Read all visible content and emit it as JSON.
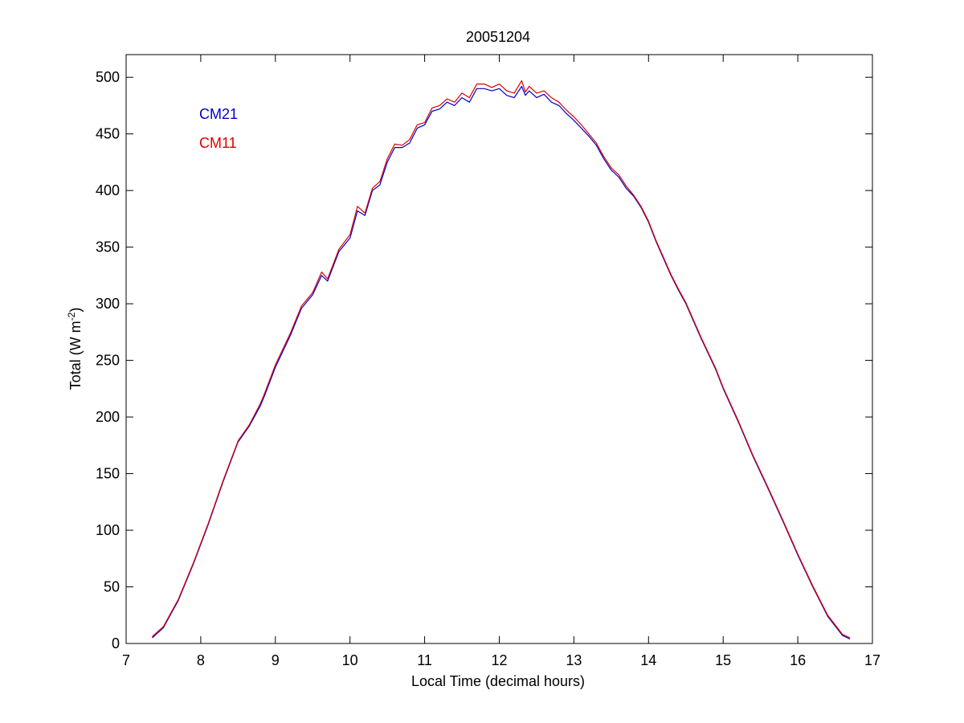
{
  "chart_data": {
    "type": "line",
    "title": "20051204",
    "xlabel": "Local Time (decimal hours)",
    "ylabel": "Total (W m",
    "ylabel_sup": "-2",
    "ylabel_close": ")",
    "xlim": [
      7,
      17
    ],
    "ylim": [
      0,
      520
    ],
    "xticks": [
      7,
      8,
      9,
      10,
      11,
      12,
      13,
      14,
      15,
      16,
      17
    ],
    "yticks": [
      0,
      50,
      100,
      150,
      200,
      250,
      300,
      350,
      400,
      450,
      500
    ],
    "grid": false,
    "legend": {
      "placement": "top-left",
      "style": "text-labels"
    },
    "series": [
      {
        "name": "CM21",
        "color": "#0000cc",
        "x": [
          7.35,
          7.5,
          7.7,
          7.9,
          8.1,
          8.3,
          8.5,
          8.65,
          8.8,
          8.85,
          9.0,
          9.2,
          9.35,
          9.5,
          9.62,
          9.7,
          9.85,
          10.0,
          10.1,
          10.2,
          10.3,
          10.4,
          10.5,
          10.6,
          10.7,
          10.8,
          10.9,
          11.0,
          11.1,
          11.2,
          11.3,
          11.4,
          11.5,
          11.6,
          11.7,
          11.8,
          11.9,
          12.0,
          12.1,
          12.2,
          12.3,
          12.35,
          12.4,
          12.5,
          12.6,
          12.7,
          12.8,
          12.9,
          13.0,
          13.1,
          13.2,
          13.3,
          13.4,
          13.5,
          13.6,
          13.7,
          13.8,
          13.9,
          14.0,
          14.1,
          14.2,
          14.3,
          14.4,
          14.5,
          14.6,
          14.7,
          14.8,
          14.9,
          15.0,
          15.2,
          15.4,
          15.6,
          15.8,
          16.0,
          16.2,
          16.4,
          16.6,
          16.7
        ],
        "y": [
          5,
          14,
          38,
          70,
          105,
          143,
          178,
          192,
          210,
          218,
          244,
          272,
          296,
          308,
          325,
          320,
          346,
          358,
          382,
          378,
          400,
          405,
          425,
          438,
          438,
          442,
          455,
          458,
          470,
          472,
          478,
          475,
          482,
          478,
          490,
          490,
          488,
          490,
          484,
          482,
          492,
          484,
          488,
          482,
          485,
          478,
          475,
          468,
          462,
          455,
          448,
          440,
          428,
          418,
          412,
          402,
          395,
          385,
          372,
          355,
          340,
          325,
          312,
          300,
          285,
          270,
          256,
          242,
          225,
          196,
          165,
          137,
          108,
          78,
          50,
          24,
          7,
          4
        ]
      },
      {
        "name": "CM11",
        "color": "#dd0000",
        "x": [
          7.35,
          7.5,
          7.7,
          7.9,
          8.1,
          8.3,
          8.5,
          8.65,
          8.8,
          8.85,
          9.0,
          9.2,
          9.35,
          9.5,
          9.62,
          9.7,
          9.85,
          10.0,
          10.1,
          10.2,
          10.3,
          10.4,
          10.5,
          10.6,
          10.7,
          10.8,
          10.9,
          11.0,
          11.1,
          11.2,
          11.3,
          11.4,
          11.5,
          11.6,
          11.7,
          11.8,
          11.9,
          12.0,
          12.1,
          12.2,
          12.3,
          12.35,
          12.4,
          12.5,
          12.6,
          12.7,
          12.8,
          12.9,
          13.0,
          13.1,
          13.2,
          13.3,
          13.4,
          13.5,
          13.6,
          13.7,
          13.8,
          13.9,
          14.0,
          14.1,
          14.2,
          14.3,
          14.4,
          14.5,
          14.6,
          14.7,
          14.8,
          14.9,
          15.0,
          15.2,
          15.4,
          15.6,
          15.8,
          16.0,
          16.2,
          16.4,
          16.6,
          16.7
        ],
        "y": [
          6,
          15,
          39,
          71,
          106,
          144,
          179,
          193,
          212,
          220,
          246,
          274,
          298,
          310,
          328,
          322,
          348,
          361,
          386,
          380,
          402,
          408,
          428,
          441,
          440,
          445,
          458,
          460,
          473,
          475,
          481,
          478,
          486,
          482,
          494,
          494,
          491,
          494,
          488,
          486,
          497,
          487,
          492,
          486,
          488,
          482,
          478,
          471,
          465,
          458,
          450,
          442,
          430,
          420,
          414,
          404,
          396,
          386,
          373,
          356,
          341,
          326,
          313,
          301,
          286,
          271,
          257,
          243,
          226,
          197,
          166,
          138,
          109,
          79,
          51,
          25,
          8,
          5
        ]
      }
    ]
  }
}
